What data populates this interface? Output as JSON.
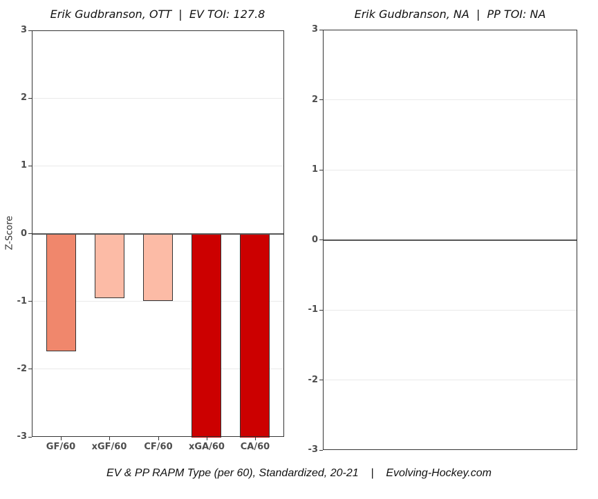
{
  "page": {
    "background": "#ffffff",
    "caption": "EV & PP RAPM Type (per 60), Standardized, 20-21    |    Evolving-Hockey.com"
  },
  "colors": {
    "zero_line": "#555555",
    "gridline": "#e9e9e9",
    "plot_border": "#333333",
    "bar_outline": "#333333",
    "tick_label": "#4d4d4d",
    "salmon": "#f0876c",
    "light_pink": "#fcbba6",
    "dark_red": "#cc0000"
  },
  "chart_data": [
    {
      "type": "bar",
      "title": "Erik Gudbranson, OTT  |  EV TOI: 127.8",
      "ylabel": "Z-Score",
      "xlabel": "",
      "ylim": [
        -3,
        3
      ],
      "yticks": [
        3,
        2,
        1,
        0,
        -1,
        -2,
        -3
      ],
      "grid": true,
      "legend": false,
      "categories": [
        "GF/60",
        "xGF/60",
        "CF/60",
        "xGA/60",
        "CA/60"
      ],
      "values": [
        -1.73,
        -0.95,
        -0.99,
        -3,
        -3
      ],
      "clipped_at_ylim": [
        false,
        false,
        false,
        true,
        true
      ],
      "bar_colors": [
        "#f0876c",
        "#fcbba6",
        "#fcbba6",
        "#cc0000",
        "#cc0000"
      ]
    },
    {
      "type": "bar",
      "title": "Erik Gudbranson, NA  |  PP TOI: NA",
      "ylabel": "",
      "xlabel": "",
      "ylim": [
        -3,
        3
      ],
      "yticks": [
        3,
        2,
        1,
        0,
        -1,
        -2,
        -3
      ],
      "grid": true,
      "legend": false,
      "categories": [],
      "values": [],
      "clipped_at_ylim": [],
      "bar_colors": []
    }
  ]
}
